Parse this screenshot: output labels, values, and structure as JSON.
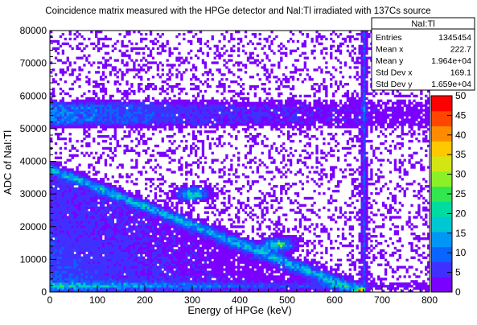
{
  "chart_data": {
    "type": "heatmap",
    "title": "Coincidence matrix measured with the HPGe detector and NaI:Tl irradiated with 137Cs source",
    "xlabel": "Energy of HPGe (keV)",
    "ylabel": "ADC of NaI:Tl",
    "xlim": [
      0,
      800
    ],
    "ylim": [
      0,
      80000
    ],
    "x_ticks": [
      "0",
      "100",
      "200",
      "300",
      "400",
      "500",
      "600",
      "700",
      "800"
    ],
    "y_ticks": [
      "0",
      "10000",
      "20000",
      "30000",
      "40000",
      "50000",
      "60000",
      "70000",
      "80000"
    ],
    "colorbar": {
      "min": 0,
      "max": 50,
      "ticks": [
        "0",
        "5",
        "10",
        "15",
        "20",
        "25",
        "30",
        "35",
        "40",
        "45",
        "50"
      ],
      "palette": [
        "#7a00ff",
        "#4030ff",
        "#0a64ff",
        "#0096f5",
        "#00c8d2",
        "#00dca0",
        "#32e650",
        "#8cf028",
        "#d2e614",
        "#ffc800",
        "#ff8c00",
        "#ff4600",
        "#ff0000"
      ]
    },
    "features": {
      "diagonal_band": {
        "x": [
          0,
          657
        ],
        "y": [
          38000,
          0
        ]
      },
      "horizontal_band_y": [
        52500,
        56500
      ],
      "horizontal_band_x": [
        0,
        800
      ],
      "photopeak_line_x": 662,
      "low_adc_band_y": 2000,
      "hotspots": [
        {
          "x": 300,
          "y": 30000
        },
        {
          "x": 480,
          "y": 14500
        },
        {
          "x": 655,
          "y": 500
        }
      ]
    },
    "stats_box": {
      "title": "NaI:Tl",
      "rows": [
        {
          "label": "Entries",
          "value": "1345454"
        },
        {
          "label": "Mean x",
          "value": "222.7"
        },
        {
          "label": "Mean y",
          "value": "1.964e+04"
        },
        {
          "label": "Std Dev x",
          "value": "169.1"
        },
        {
          "label": "Std Dev y",
          "value": "1.659e+04"
        }
      ]
    }
  }
}
